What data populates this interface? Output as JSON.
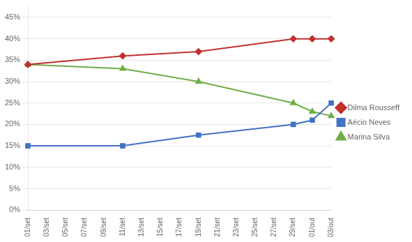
{
  "chart_data": {
    "type": "line",
    "categories": [
      "01/set",
      "03/set",
      "05/set",
      "07/set",
      "09/set",
      "11/set",
      "13/set",
      "15/set",
      "17/set",
      "19/set",
      "21/set",
      "23/set",
      "25/set",
      "27/set",
      "29/set",
      "01/out",
      "03/out"
    ],
    "series": [
      {
        "name": "Dilma Rousseff",
        "color": "#C0312B",
        "marker": "diamond",
        "x": [
          "01/set",
          "11/set",
          "19/set",
          "29/set",
          "01/out",
          "03/out"
        ],
        "values": [
          0.34,
          0.36,
          0.37,
          0.4,
          0.4,
          0.4
        ]
      },
      {
        "name": "Aécio Neves",
        "color": "#4472C4",
        "marker": "square",
        "x": [
          "01/set",
          "11/set",
          "19/set",
          "29/set",
          "01/out",
          "03/out"
        ],
        "values": [
          0.15,
          0.15,
          0.175,
          0.2,
          0.21,
          0.25
        ]
      },
      {
        "name": "Marina Silva",
        "color": "#70AD47",
        "marker": "triangle",
        "x": [
          "01/set",
          "11/set",
          "19/set",
          "29/set",
          "01/out",
          "03/out"
        ],
        "values": [
          0.34,
          0.33,
          0.3,
          0.25,
          0.23,
          0.22
        ]
      }
    ],
    "ylim": [
      0,
      0.475
    ],
    "yticks": [
      {
        "value": 0.0,
        "label": "0%"
      },
      {
        "value": 0.05,
        "label": "5%"
      },
      {
        "value": 0.1,
        "label": "10%"
      },
      {
        "value": 0.15,
        "label": "15%"
      },
      {
        "value": 0.2,
        "label": "20%"
      },
      {
        "value": 0.25,
        "label": "25%"
      },
      {
        "value": 0.3,
        "label": "30%"
      },
      {
        "value": 0.35,
        "label": "35%"
      },
      {
        "value": 0.4,
        "label": "40%"
      },
      {
        "value": 0.45,
        "label": "45%"
      }
    ],
    "grid": true,
    "legend": "right"
  }
}
